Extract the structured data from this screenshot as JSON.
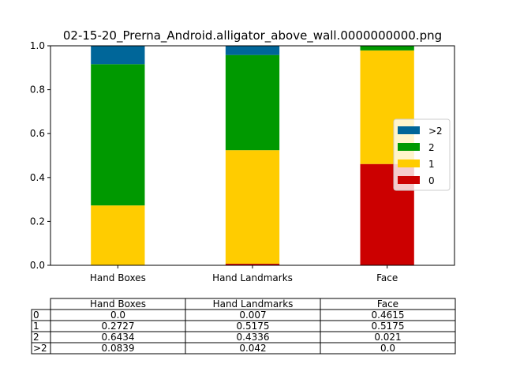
{
  "chart_data": {
    "type": "bar",
    "stacked": true,
    "title": "02-15-20_Prerna_Android.alligator_above_wall.0000000000.png",
    "categories": [
      "Hand Boxes",
      "Hand Landmarks",
      "Face"
    ],
    "ylim": [
      0,
      1.0
    ],
    "yticks": [
      "0.0",
      "0.2",
      "0.4",
      "0.6",
      "0.8",
      "1.0"
    ],
    "legend_position": "center-right",
    "series": [
      {
        "name": "0",
        "color": "#cc0000",
        "values": [
          0.0,
          0.007,
          0.4615
        ]
      },
      {
        "name": "1",
        "color": "#ffcc00",
        "values": [
          0.2727,
          0.5175,
          0.5175
        ]
      },
      {
        "name": "2",
        "color": "#009900",
        "values": [
          0.6434,
          0.4336,
          0.021
        ]
      },
      {
        "name": ">2",
        "color": "#006699",
        "values": [
          0.0839,
          0.042,
          0.0
        ]
      }
    ],
    "table": {
      "columns": [
        "Hand Boxes",
        "Hand Landmarks",
        "Face"
      ],
      "rows": [
        {
          "label": "0",
          "cells": [
            "0.0",
            "0.007",
            "0.4615"
          ]
        },
        {
          "label": "1",
          "cells": [
            "0.2727",
            "0.5175",
            "0.5175"
          ]
        },
        {
          "label": "2",
          "cells": [
            "0.6434",
            "0.4336",
            "0.021"
          ]
        },
        {
          "label": ">2",
          "cells": [
            "0.0839",
            "0.042",
            "0.0"
          ]
        }
      ]
    }
  }
}
